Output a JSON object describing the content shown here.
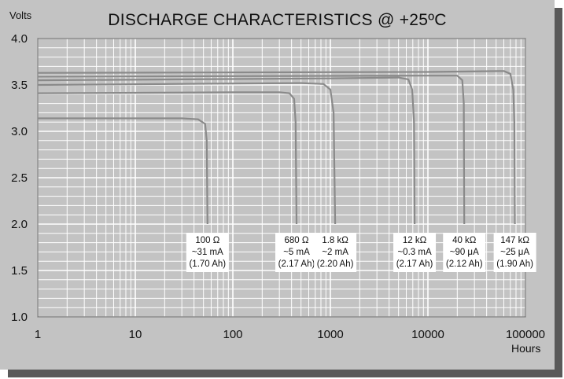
{
  "chart_data": {
    "type": "line",
    "title": "DISCHARGE CHARACTERISTICS @ +25ºC",
    "ylabel": "Volts",
    "xlabel": "Hours",
    "x_scale": "log",
    "xlim": [
      1,
      100000
    ],
    "ylim": [
      1.0,
      4.0
    ],
    "grid": true,
    "x_ticks": [
      1,
      10,
      100,
      1000,
      10000,
      100000
    ],
    "x_tick_labels": [
      "1",
      "10",
      "100",
      "1000",
      "10000",
      "100000"
    ],
    "y_ticks": [
      1.0,
      1.5,
      2.0,
      2.5,
      3.0,
      3.5,
      4.0
    ],
    "y_tick_labels": [
      "1.0",
      "1.5",
      "2.0",
      "2.5",
      "3.0",
      "3.5",
      "4.0"
    ],
    "series": [
      {
        "name": "100 Ω",
        "current": "~31 mA",
        "capacity": "(1.70 Ah)",
        "points": [
          [
            1,
            3.14
          ],
          [
            10,
            3.14
          ],
          [
            30,
            3.14
          ],
          [
            44,
            3.13
          ],
          [
            52,
            3.08
          ],
          [
            54,
            2.9
          ],
          [
            55,
            2.0
          ]
        ]
      },
      {
        "name": "680 Ω",
        "current": "~5 mA",
        "capacity": "(2.17 Ah)",
        "points": [
          [
            1,
            3.41
          ],
          [
            100,
            3.42
          ],
          [
            300,
            3.42
          ],
          [
            380,
            3.41
          ],
          [
            425,
            3.35
          ],
          [
            440,
            3.1
          ],
          [
            450,
            2.0
          ]
        ]
      },
      {
        "name": "1.8 kΩ",
        "current": "~2 mA",
        "capacity": "(2.20 Ah)",
        "points": [
          [
            1,
            3.5
          ],
          [
            500,
            3.52
          ],
          [
            850,
            3.51
          ],
          [
            1000,
            3.45
          ],
          [
            1080,
            3.2
          ],
          [
            1120,
            2.0
          ]
        ]
      },
      {
        "name": "12 kΩ",
        "current": "~0.3 mA",
        "capacity": "(2.17 Ah)",
        "points": [
          [
            1,
            3.55
          ],
          [
            1000,
            3.57
          ],
          [
            5000,
            3.58
          ],
          [
            6300,
            3.56
          ],
          [
            6900,
            3.45
          ],
          [
            7200,
            3.1
          ],
          [
            7300,
            2.0
          ]
        ]
      },
      {
        "name": "40 kΩ",
        "current": "~90 μA",
        "capacity": "(2.12 Ah)",
        "points": [
          [
            1,
            3.59
          ],
          [
            10000,
            3.6
          ],
          [
            20000,
            3.6
          ],
          [
            22500,
            3.55
          ],
          [
            23300,
            3.3
          ],
          [
            23600,
            2.0
          ]
        ]
      },
      {
        "name": "147 kΩ",
        "current": "~25 μA",
        "capacity": "(1.90 Ah)",
        "points": [
          [
            1,
            3.63
          ],
          [
            10000,
            3.64
          ],
          [
            60000,
            3.65
          ],
          [
            70000,
            3.62
          ],
          [
            75000,
            3.45
          ],
          [
            77000,
            3.1
          ],
          [
            78000,
            2.0
          ]
        ]
      }
    ]
  }
}
